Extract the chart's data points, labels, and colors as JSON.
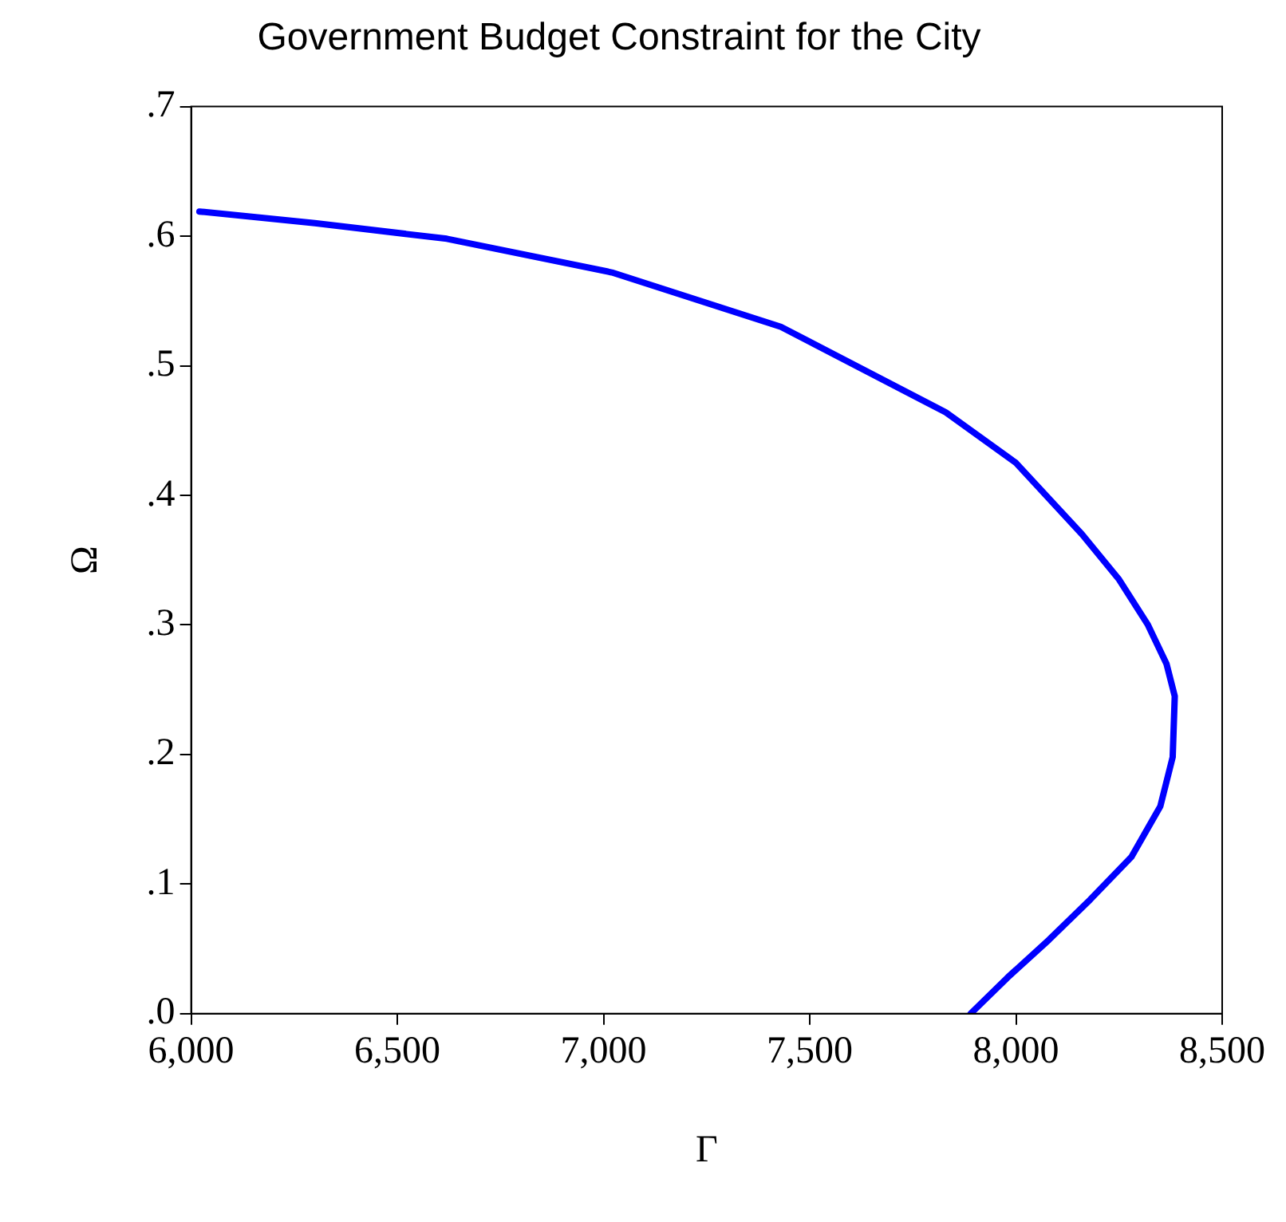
{
  "chart_data": {
    "type": "line",
    "title": "Government Budget Constraint for the City",
    "xlabel": "Γ",
    "ylabel": "Ω",
    "series": [
      {
        "color": "#0000ff",
        "x": [
          6020,
          6300,
          6620,
          7020,
          7430,
          7830,
          8000,
          8160,
          8250,
          8320,
          8365,
          8385,
          8380,
          8350,
          8280,
          8180,
          8080,
          7980,
          7890
        ],
        "values": [
          0.619,
          0.61,
          0.598,
          0.572,
          0.53,
          0.464,
          0.425,
          0.37,
          0.335,
          0.3,
          0.27,
          0.245,
          0.198,
          0.16,
          0.121,
          0.088,
          0.057,
          0.028,
          0.0
        ]
      }
    ],
    "xlim": [
      6000,
      8500
    ],
    "xticks": [
      {
        "value": 6000,
        "label": "6,000"
      },
      {
        "value": 6500,
        "label": "6,500"
      },
      {
        "value": 7000,
        "label": "7,000"
      },
      {
        "value": 7500,
        "label": "7,500"
      },
      {
        "value": 8000,
        "label": "8,000"
      },
      {
        "value": 8500,
        "label": "8,500"
      }
    ],
    "ylim": [
      0,
      0.7
    ],
    "yticks": [
      {
        "value": 0,
        "label": ".0"
      },
      {
        "value": 0.1,
        "label": ".1"
      },
      {
        "value": 0.2,
        "label": ".2"
      },
      {
        "value": 0.3,
        "label": ".3"
      },
      {
        "value": 0.4,
        "label": ".4"
      },
      {
        "value": 0.5,
        "label": ".5"
      },
      {
        "value": 0.6,
        "label": ".6"
      },
      {
        "value": 0.7,
        "label": ".7"
      }
    ],
    "grid": false,
    "legend": false,
    "marker": "none",
    "line_style": "solid"
  }
}
